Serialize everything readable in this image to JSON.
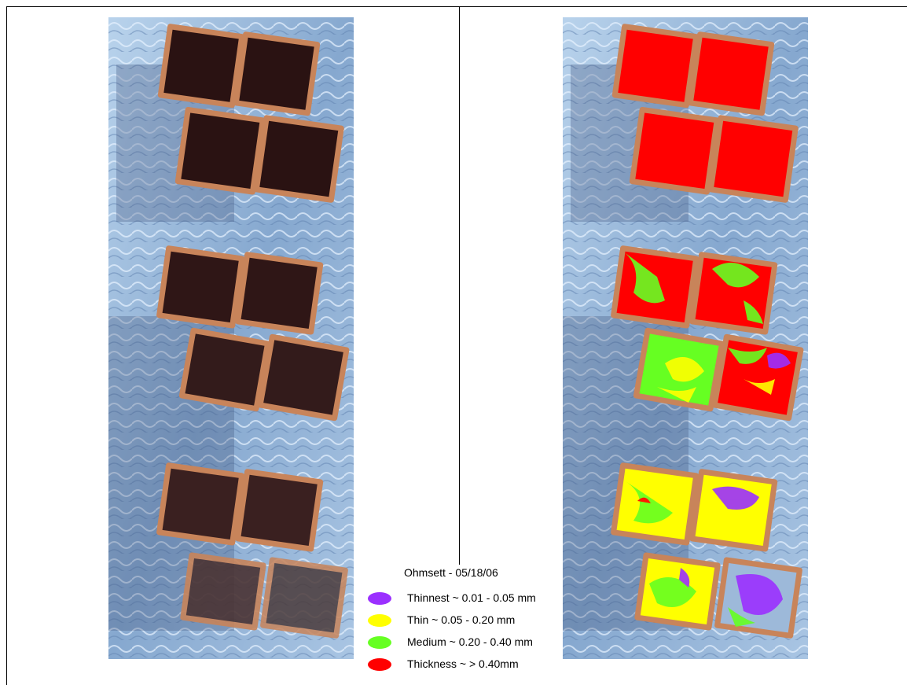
{
  "legend": {
    "title": "Ohmsett - 05/18/06",
    "items": [
      {
        "label": "Thinnest ~ 0.01 - 0.05 mm",
        "color": "#9b30ff"
      },
      {
        "label": "Thin ~ 0.05 - 0.20 mm",
        "color": "#ffff00"
      },
      {
        "label": "Medium ~ 0.20 - 0.40 mm",
        "color": "#66ff22"
      },
      {
        "label": "Thickness ~ > 0.40mm",
        "color": "#ff0000"
      }
    ]
  },
  "colors": {
    "water": "#9db9d9",
    "frame": "#c8845a",
    "oil_dark": "#2a1212"
  }
}
